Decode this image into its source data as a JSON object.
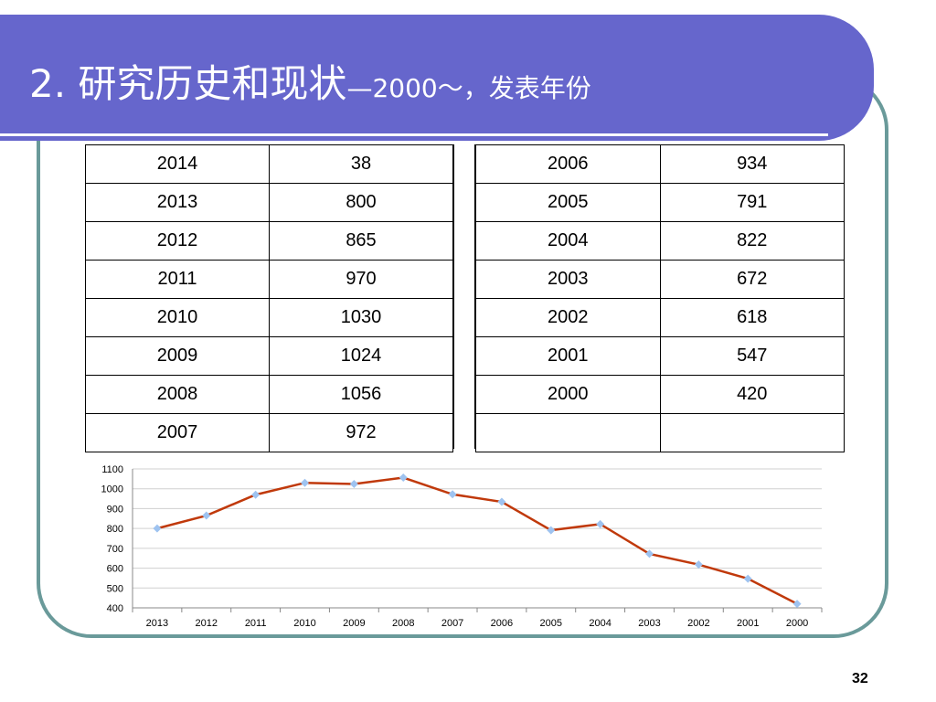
{
  "title": {
    "main": "2. 研究历史和现状",
    "sub": "—2000～，发表年份"
  },
  "table_left": [
    [
      "2014",
      "38"
    ],
    [
      "2013",
      "800"
    ],
    [
      "2012",
      "865"
    ],
    [
      "2011",
      "970"
    ],
    [
      "2010",
      "1030"
    ],
    [
      "2009",
      "1024"
    ],
    [
      "2008",
      "1056"
    ],
    [
      "2007",
      "972"
    ]
  ],
  "table_right": [
    [
      "2006",
      "934"
    ],
    [
      "2005",
      "791"
    ],
    [
      "2004",
      "822"
    ],
    [
      "2003",
      "672"
    ],
    [
      "2002",
      "618"
    ],
    [
      "2001",
      "547"
    ],
    [
      "2000",
      "420"
    ],
    [
      "",
      ""
    ]
  ],
  "chart_data": {
    "type": "line",
    "categories": [
      "2013",
      "2012",
      "2011",
      "2010",
      "2009",
      "2008",
      "2007",
      "2006",
      "2005",
      "2004",
      "2003",
      "2002",
      "2001",
      "2000"
    ],
    "values": [
      800,
      865,
      970,
      1030,
      1024,
      1056,
      972,
      934,
      791,
      822,
      672,
      618,
      547,
      420
    ],
    "yticks": [
      "400",
      "500",
      "600",
      "700",
      "800",
      "900",
      "1000",
      "1100"
    ],
    "ylim": [
      400,
      1100
    ],
    "grid": true,
    "line_color": "#c0390b",
    "marker_color": "#9ec3f0"
  },
  "page_number": "32"
}
